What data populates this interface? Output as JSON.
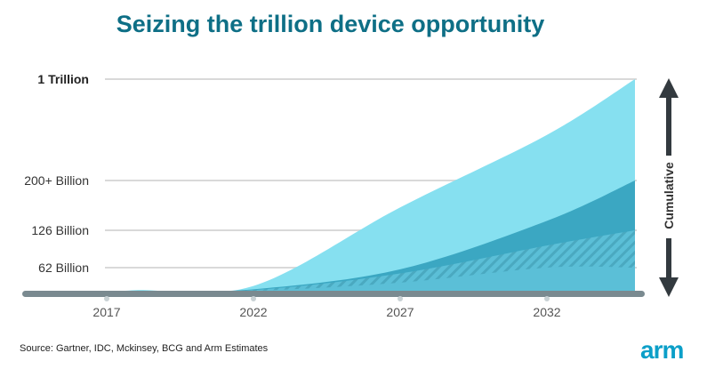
{
  "title": "Seizing the trillion device opportunity",
  "source": "Source: Gartner, IDC, Mckinsey, BCG and Arm Estimates",
  "logo_text": "arm",
  "chart_data": {
    "type": "area",
    "title": "Seizing the trillion device opportunity",
    "x_ticks": [
      "2017",
      "2022",
      "2027",
      "2032"
    ],
    "y_ticks": [
      {
        "value": 62,
        "label": "62 Billion"
      },
      {
        "value": 126,
        "label": "126 Billion"
      },
      {
        "value": 200,
        "label": "200+ Billion"
      },
      {
        "value": 1000,
        "label": "1 Trillion"
      }
    ],
    "xlim": [
      2017,
      2035
    ],
    "annotation": "Cumulative",
    "series": [
      {
        "points": [
          [
            2017,
            0
          ],
          [
            2018,
            8
          ],
          [
            2022,
            18
          ],
          [
            2027,
            160
          ],
          [
            2032,
            560
          ],
          [
            2035,
            1000
          ]
        ],
        "color": "#86e0f0"
      },
      {
        "points": [
          [
            2017,
            0
          ],
          [
            2018,
            4
          ],
          [
            2022,
            10
          ],
          [
            2027,
            58
          ],
          [
            2032,
            140
          ],
          [
            2035,
            200
          ]
        ],
        "color": "#3ba7c2"
      },
      {
        "points": [
          [
            2017,
            0
          ],
          [
            2018,
            3
          ],
          [
            2022,
            8
          ],
          [
            2027,
            48
          ],
          [
            2032,
            100
          ],
          [
            2035,
            126
          ]
        ],
        "color": "#5bbfd7",
        "pattern": "hatched"
      },
      {
        "points": [
          [
            2017,
            0
          ],
          [
            2018,
            2
          ],
          [
            2022,
            6
          ],
          [
            2027,
            26
          ],
          [
            2032,
            62
          ],
          [
            2035,
            62
          ]
        ],
        "color": "#5bbfd7"
      }
    ],
    "colors": {
      "grid": "#d9d9d9",
      "axis": "#7a8a90",
      "arrow": "#333a3f"
    }
  }
}
